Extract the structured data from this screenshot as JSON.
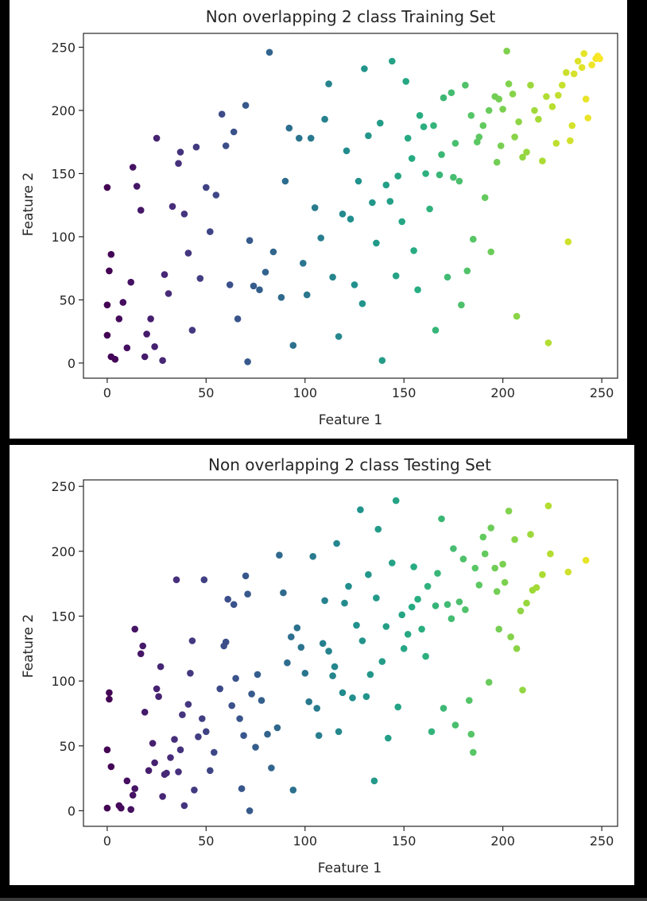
{
  "chart_data": [
    {
      "type": "scatter",
      "title": "Non overlapping 2 class Training Set",
      "xlabel": "Feature 1",
      "ylabel": "Feature 2",
      "xlim": [
        -12,
        258
      ],
      "ylim": [
        -12,
        261
      ],
      "xticks": [
        0,
        50,
        100,
        150,
        200,
        250
      ],
      "yticks": [
        0,
        50,
        100,
        150,
        200,
        250
      ],
      "grid": false,
      "colormap": "viridis",
      "color_range": [
        0,
        250
      ],
      "point_count_estimate": 1500,
      "points": [
        [
          0,
          139
        ],
        [
          2,
          86
        ],
        [
          1,
          73
        ],
        [
          0,
          46
        ],
        [
          0,
          22
        ],
        [
          2,
          5
        ],
        [
          4,
          3
        ],
        [
          6,
          35
        ],
        [
          8,
          48
        ],
        [
          10,
          12
        ],
        [
          12,
          64
        ],
        [
          13,
          155
        ],
        [
          15,
          140
        ],
        [
          17,
          121
        ],
        [
          19,
          5
        ],
        [
          20,
          23
        ],
        [
          22,
          35
        ],
        [
          25,
          178
        ],
        [
          24,
          13
        ],
        [
          28,
          2
        ],
        [
          29,
          70
        ],
        [
          31,
          55
        ],
        [
          33,
          124
        ],
        [
          36,
          158
        ],
        [
          37,
          167
        ],
        [
          39,
          118
        ],
        [
          41,
          87
        ],
        [
          43,
          26
        ],
        [
          45,
          171
        ],
        [
          47,
          67
        ],
        [
          50,
          139
        ],
        [
          52,
          104
        ],
        [
          55,
          133
        ],
        [
          58,
          197
        ],
        [
          60,
          172
        ],
        [
          62,
          62
        ],
        [
          64,
          183
        ],
        [
          66,
          35
        ],
        [
          70,
          204
        ],
        [
          72,
          97
        ],
        [
          71,
          1
        ],
        [
          74,
          61
        ],
        [
          77,
          58
        ],
        [
          80,
          72
        ],
        [
          82,
          246
        ],
        [
          84,
          88
        ],
        [
          88,
          52
        ],
        [
          90,
          144
        ],
        [
          92,
          186
        ],
        [
          94,
          14
        ],
        [
          97,
          178
        ],
        [
          99,
          79
        ],
        [
          101,
          54
        ],
        [
          103,
          178
        ],
        [
          105,
          123
        ],
        [
          108,
          99
        ],
        [
          110,
          193
        ],
        [
          112,
          221
        ],
        [
          114,
          68
        ],
        [
          117,
          21
        ],
        [
          119,
          118
        ],
        [
          121,
          168
        ],
        [
          123,
          114
        ],
        [
          125,
          62
        ],
        [
          127,
          144
        ],
        [
          129,
          47
        ],
        [
          130,
          233
        ],
        [
          132,
          180
        ],
        [
          134,
          127
        ],
        [
          136,
          95
        ],
        [
          138,
          190
        ],
        [
          139,
          2
        ],
        [
          141,
          141
        ],
        [
          143,
          128
        ],
        [
          144,
          239
        ],
        [
          146,
          69
        ],
        [
          147,
          148
        ],
        [
          149,
          112
        ],
        [
          151,
          223
        ],
        [
          152,
          178
        ],
        [
          154,
          162
        ],
        [
          155,
          89
        ],
        [
          157,
          58
        ],
        [
          158,
          196
        ],
        [
          160,
          187
        ],
        [
          161,
          150
        ],
        [
          163,
          122
        ],
        [
          165,
          188
        ],
        [
          166,
          26
        ],
        [
          168,
          149
        ],
        [
          169,
          165
        ],
        [
          170,
          210
        ],
        [
          172,
          68
        ],
        [
          174,
          214
        ],
        [
          175,
          147
        ],
        [
          176,
          174
        ],
        [
          178,
          144
        ],
        [
          179,
          46
        ],
        [
          181,
          220
        ],
        [
          182,
          73
        ],
        [
          184,
          196
        ],
        [
          185,
          98
        ],
        [
          187,
          175
        ],
        [
          188,
          179
        ],
        [
          190,
          188
        ],
        [
          191,
          131
        ],
        [
          193,
          200
        ],
        [
          194,
          88
        ],
        [
          196,
          211
        ],
        [
          197,
          159
        ],
        [
          198,
          209
        ],
        [
          199,
          172
        ],
        [
          200,
          201
        ],
        [
          202,
          247
        ],
        [
          203,
          221
        ],
        [
          205,
          213
        ],
        [
          206,
          179
        ],
        [
          207,
          37
        ],
        [
          208,
          191
        ],
        [
          210,
          163
        ],
        [
          212,
          167
        ],
        [
          214,
          220
        ],
        [
          216,
          200
        ],
        [
          218,
          193
        ],
        [
          220,
          160
        ],
        [
          222,
          211
        ],
        [
          223,
          16
        ],
        [
          225,
          203
        ],
        [
          227,
          174
        ],
        [
          228,
          212
        ],
        [
          230,
          220
        ],
        [
          232,
          230
        ],
        [
          233,
          96
        ],
        [
          234,
          176
        ],
        [
          235,
          188
        ],
        [
          236,
          229
        ],
        [
          238,
          239
        ],
        [
          240,
          234
        ],
        [
          241,
          245
        ],
        [
          242,
          209
        ],
        [
          243,
          194
        ],
        [
          245,
          236
        ],
        [
          247,
          241
        ],
        [
          248,
          243
        ],
        [
          249,
          241
        ]
      ]
    },
    {
      "type": "scatter",
      "title": "Non overlapping 2 class Testing Set",
      "xlabel": "Feature 1",
      "ylabel": "Feature 2",
      "xlim": [
        -12,
        258
      ],
      "ylim": [
        -12,
        255
      ],
      "xticks": [
        0,
        50,
        100,
        150,
        200,
        250
      ],
      "yticks": [
        0,
        50,
        100,
        150,
        200,
        250
      ],
      "grid": false,
      "colormap": "viridis",
      "color_range": [
        0,
        250
      ],
      "point_count_estimate": 500,
      "points": [
        [
          0,
          2
        ],
        [
          0,
          47
        ],
        [
          1,
          91
        ],
        [
          1,
          86
        ],
        [
          2,
          34
        ],
        [
          6,
          4
        ],
        [
          7,
          2
        ],
        [
          10,
          23
        ],
        [
          12,
          1
        ],
        [
          13,
          12
        ],
        [
          14,
          140
        ],
        [
          14,
          17
        ],
        [
          17,
          121
        ],
        [
          18,
          127
        ],
        [
          19,
          76
        ],
        [
          21,
          31
        ],
        [
          23,
          52
        ],
        [
          24,
          37
        ],
        [
          25,
          94
        ],
        [
          26,
          88
        ],
        [
          27,
          111
        ],
        [
          28,
          11
        ],
        [
          29,
          28
        ],
        [
          30,
          29
        ],
        [
          32,
          41
        ],
        [
          34,
          55
        ],
        [
          35,
          178
        ],
        [
          36,
          30
        ],
        [
          37,
          47
        ],
        [
          38,
          74
        ],
        [
          39,
          4
        ],
        [
          41,
          82
        ],
        [
          42,
          106
        ],
        [
          43,
          131
        ],
        [
          44,
          16
        ],
        [
          46,
          57
        ],
        [
          48,
          71
        ],
        [
          49,
          178
        ],
        [
          50,
          61
        ],
        [
          52,
          31
        ],
        [
          54,
          45
        ],
        [
          57,
          94
        ],
        [
          59,
          127
        ],
        [
          60,
          130
        ],
        [
          61,
          163
        ],
        [
          63,
          81
        ],
        [
          64,
          159
        ],
        [
          65,
          102
        ],
        [
          67,
          71
        ],
        [
          68,
          17
        ],
        [
          69,
          58
        ],
        [
          70,
          181
        ],
        [
          71,
          167
        ],
        [
          72,
          0
        ],
        [
          73,
          90
        ],
        [
          75,
          49
        ],
        [
          76,
          105
        ],
        [
          78,
          85
        ],
        [
          81,
          59
        ],
        [
          83,
          33
        ],
        [
          86,
          64
        ],
        [
          87,
          197
        ],
        [
          89,
          168
        ],
        [
          91,
          114
        ],
        [
          93,
          134
        ],
        [
          94,
          16
        ],
        [
          96,
          141
        ],
        [
          98,
          126
        ],
        [
          100,
          106
        ],
        [
          102,
          84
        ],
        [
          104,
          196
        ],
        [
          106,
          79
        ],
        [
          107,
          58
        ],
        [
          109,
          129
        ],
        [
          110,
          162
        ],
        [
          112,
          123
        ],
        [
          114,
          104
        ],
        [
          115,
          111
        ],
        [
          116,
          206
        ],
        [
          117,
          61
        ],
        [
          119,
          91
        ],
        [
          120,
          160
        ],
        [
          122,
          173
        ],
        [
          124,
          87
        ],
        [
          126,
          143
        ],
        [
          128,
          232
        ],
        [
          129,
          131
        ],
        [
          131,
          88
        ],
        [
          132,
          182
        ],
        [
          133,
          105
        ],
        [
          135,
          23
        ],
        [
          136,
          164
        ],
        [
          137,
          217
        ],
        [
          139,
          115
        ],
        [
          141,
          142
        ],
        [
          142,
          56
        ],
        [
          144,
          191
        ],
        [
          146,
          239
        ],
        [
          147,
          80
        ],
        [
          149,
          151
        ],
        [
          150,
          125
        ],
        [
          152,
          136
        ],
        [
          154,
          157
        ],
        [
          155,
          188
        ],
        [
          157,
          163
        ],
        [
          159,
          140
        ],
        [
          161,
          119
        ],
        [
          162,
          173
        ],
        [
          164,
          61
        ],
        [
          166,
          158
        ],
        [
          167,
          183
        ],
        [
          169,
          225
        ],
        [
          170,
          79
        ],
        [
          172,
          159
        ],
        [
          174,
          148
        ],
        [
          175,
          202
        ],
        [
          176,
          66
        ],
        [
          178,
          161
        ],
        [
          180,
          194
        ],
        [
          181,
          155
        ],
        [
          183,
          85
        ],
        [
          184,
          59
        ],
        [
          185,
          45
        ],
        [
          186,
          187
        ],
        [
          188,
          174
        ],
        [
          190,
          211
        ],
        [
          191,
          198
        ],
        [
          193,
          99
        ],
        [
          194,
          218
        ],
        [
          196,
          187
        ],
        [
          197,
          169
        ],
        [
          198,
          140
        ],
        [
          200,
          190
        ],
        [
          201,
          176
        ],
        [
          203,
          231
        ],
        [
          204,
          134
        ],
        [
          206,
          209
        ],
        [
          207,
          125
        ],
        [
          209,
          154
        ],
        [
          210,
          93
        ],
        [
          212,
          160
        ],
        [
          214,
          213
        ],
        [
          215,
          170
        ],
        [
          217,
          172
        ],
        [
          220,
          182
        ],
        [
          223,
          235
        ],
        [
          224,
          198
        ],
        [
          233,
          184
        ],
        [
          242,
          193
        ]
      ]
    }
  ]
}
